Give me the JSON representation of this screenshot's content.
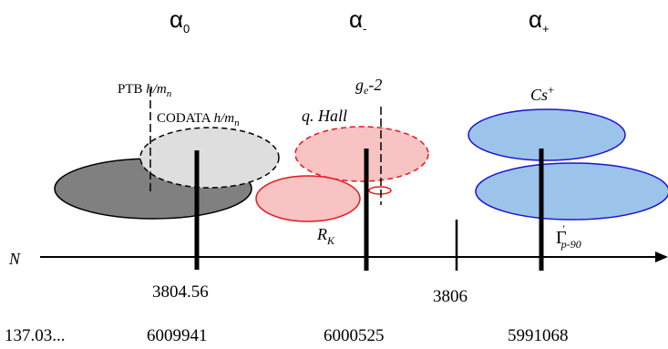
{
  "headers": {
    "alpha0": {
      "symbol": "α",
      "sub": "0"
    },
    "alpha_minus": {
      "symbol": "α",
      "sub": "-"
    },
    "alpha_plus": {
      "symbol": "α",
      "sub": "+"
    }
  },
  "labels": {
    "ptb": {
      "main": "PTB ",
      "italic": "h/m",
      "sub": "n"
    },
    "codata": {
      "main": "CODATA ",
      "italic": "h/m",
      "sub": "n"
    },
    "ge2": {
      "g": "g",
      "sub": "e",
      "rest": "-2"
    },
    "qhall": "q. Hall",
    "cs": {
      "main": "Cs",
      "sup": "+"
    },
    "rk": {
      "main": "R",
      "sub": "K"
    },
    "gamma": {
      "main": "Γ",
      "sup": "'",
      "sub": "p-90"
    },
    "axis": "N"
  },
  "axis_ticks": {
    "t1": "3804.56",
    "t2": "3806"
  },
  "bottom_values": {
    "v1": "137.03...",
    "v2": "6009941",
    "v3": "6000525",
    "v4": "5991068"
  },
  "colors": {
    "dark_gray": "#808080",
    "light_gray": "#dedede",
    "pink": "#f7c3c3",
    "red": "#e8171f",
    "blue": "#9cc4eb",
    "blue_stroke": "#1a14d4",
    "black": "#000000"
  }
}
